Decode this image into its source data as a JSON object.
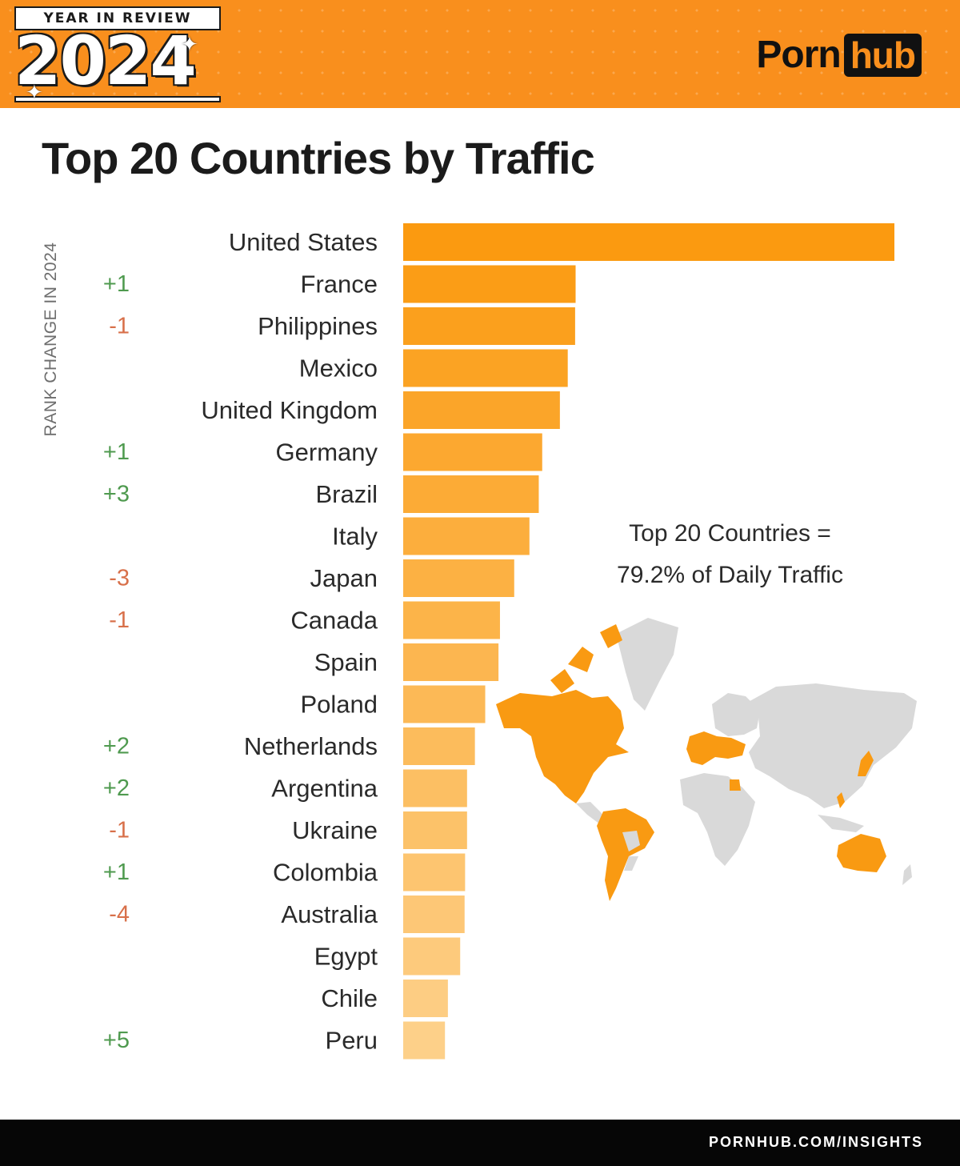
{
  "header": {
    "badge_top": "YEAR IN REVIEW",
    "badge_year": "2024",
    "logo_left": "Porn",
    "logo_right": "hub",
    "brand_color": "#f98f1d"
  },
  "side_label": "RANK CHANGE IN 2024",
  "note": {
    "line1": "Top 20 Countries =",
    "line2": "79.2% of Daily Traffic"
  },
  "footer": {
    "url": "PORNHUB.COM/INSIGHTS"
  },
  "chart_data": {
    "type": "bar",
    "orientation": "horizontal",
    "title": "Top 20 Countries by Traffic",
    "categories": [
      "United States",
      "France",
      "Philippines",
      "Mexico",
      "United Kingdom",
      "Germany",
      "Brazil",
      "Italy",
      "Japan",
      "Canada",
      "Spain",
      "Poland",
      "Netherlands",
      "Argentina",
      "Ukraine",
      "Colombia",
      "Australia",
      "Egypt",
      "Chile",
      "Peru"
    ],
    "values": [
      100,
      35.1,
      35.0,
      33.5,
      31.9,
      28.3,
      27.6,
      25.7,
      22.6,
      19.7,
      19.4,
      16.7,
      14.6,
      13.0,
      13.0,
      12.6,
      12.5,
      11.6,
      9.1,
      8.5
    ],
    "rank_change": [
      "",
      "+1",
      "-1",
      "",
      "",
      "+1",
      "+3",
      "",
      "-3",
      "-1",
      "",
      "",
      "+2",
      "+2",
      "-1",
      "+1",
      "-4",
      "",
      "",
      "+5"
    ],
    "colors": {
      "positive": "#4f9a4f",
      "negative": "#d8704a",
      "bar_start": "#fb9a10",
      "bar_end": "#fdd089"
    },
    "grid": false,
    "legend": "none"
  },
  "map": {
    "highlight_color": "#f99a12",
    "base_color": "#d9d9d9"
  }
}
